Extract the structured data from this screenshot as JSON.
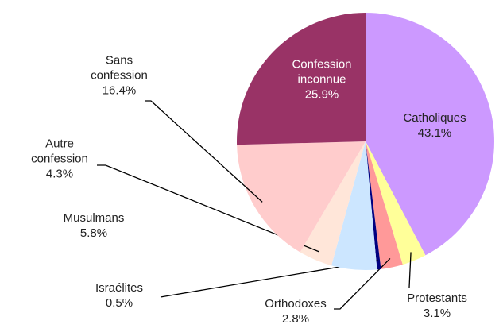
{
  "chart_data": {
    "type": "pie",
    "categories": [
      "Catholiques",
      "Protestants",
      "Orthodoxes",
      "Israélites",
      "Musulmans",
      "Autre confession",
      "Sans confession",
      "Confession inconnue"
    ],
    "values": [
      43.1,
      3.1,
      2.8,
      0.5,
      5.8,
      4.3,
      16.4,
      25.9
    ],
    "value_labels": [
      "43.1%",
      "3.1%",
      "2.8%",
      "0.5%",
      "5.8%",
      "4.3%",
      "16.4%",
      "25.9%"
    ],
    "colors": [
      "#cc99ff",
      "#ffff99",
      "#ff9999",
      "#000080",
      "#cce6ff",
      "#ffe6d9",
      "#ffcccc",
      "#993366"
    ]
  }
}
